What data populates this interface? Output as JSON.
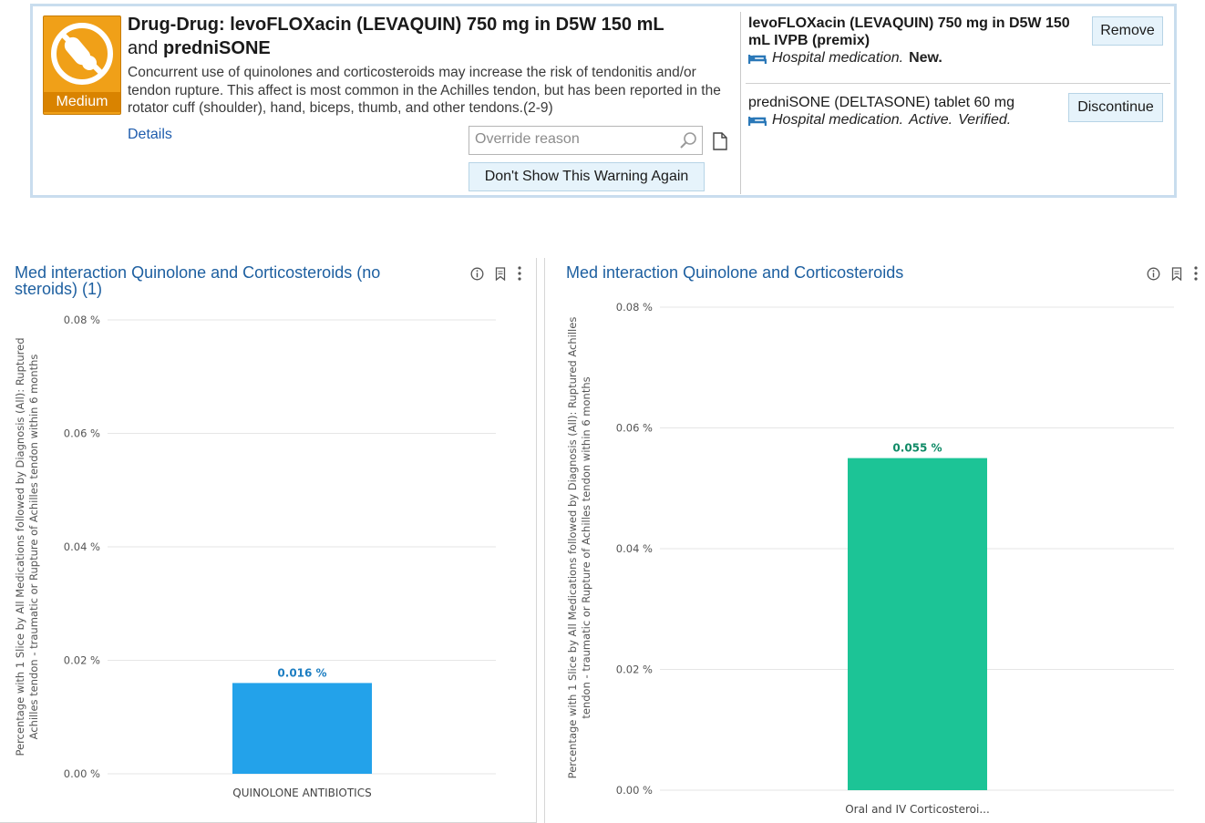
{
  "alert": {
    "severity": "Medium",
    "title_part1": "Drug-Drug: levoFLOXacin (LEVAQUIN) 750 mg in D5W 150 mL",
    "title_and": "and",
    "title_drug2": "predniSONE",
    "description": "Concurrent use of quinolones and corticosteroids may increase the risk of tendonitis and/or tendon rupture. This affect is most common in the Achilles tendon, but has been reported in the rotator cuff (shoulder), hand, biceps, thumb, and other tendons.(2-9)",
    "details_label": "Details",
    "override_placeholder": "Override reason",
    "dont_show_label": "Don't Show This Warning Again",
    "meds": [
      {
        "name": "levoFLOXacin (LEVAQUIN) 750 mg in D5W 150 mL IVPB (premix)",
        "source": "Hospital medication.",
        "status1": "New.",
        "status2": "",
        "action": "Remove"
      },
      {
        "name": "predniSONE (DELTASONE) tablet 60 mg",
        "source": "Hospital medication.",
        "status1": "Active.",
        "status2": "Verified.",
        "action": "Discontinue"
      }
    ],
    "colors": {
      "badge": "#f0a018",
      "link": "#1e5cad",
      "button_bg": "#e6f3fb"
    }
  },
  "charts": [
    {
      "title_line1": "Med interaction Quinolone and Corticosteroids (no",
      "title_line2": "steroids) (1)",
      "tools": [
        "info-icon",
        "bookmark-icon",
        "more-vertical-icon"
      ]
    },
    {
      "title_line1": "Med interaction Quinolone and Corticosteroids",
      "title_line2": "",
      "tools": [
        "info-icon",
        "bookmark-icon",
        "more-vertical-icon"
      ]
    }
  ],
  "chart_data": [
    {
      "type": "bar",
      "title": "Med interaction Quinolone and Corticosteroids (no steroids) (1)",
      "categories": [
        "QUINOLONE ANTIBIOTICS"
      ],
      "values": [
        0.016
      ],
      "data_labels": [
        "0.016 %"
      ],
      "ylabel_line1": "Percentage with 1 Slice by All Medications followed by Diagnosis (All): Ruptured",
      "ylabel_line2": "Achilles tendon - traumatic or Rupture of Achilles tendon within 6 months",
      "yticks": [
        "0.00 %",
        "0.02 %",
        "0.04 %",
        "0.06 %",
        "0.08 %"
      ],
      "ylim": [
        0,
        0.08
      ],
      "color": "#23a2ea",
      "label_color": "#1d7ec2"
    },
    {
      "type": "bar",
      "title": "Med interaction Quinolone and Corticosteroids",
      "categories": [
        "Oral and IV Corticosteroi..."
      ],
      "values": [
        0.055
      ],
      "data_labels": [
        "0.055 %"
      ],
      "ylabel_line1": "Percentage with 1 Slice by All Medications followed by Diagnosis (All): Ruptured Achilles",
      "ylabel_line2": "tendon - traumatic or Rupture of Achilles tendon within 6 months",
      "yticks": [
        "0.00 %",
        "0.02 %",
        "0.04 %",
        "0.06 %",
        "0.08 %"
      ],
      "ylim": [
        0,
        0.08
      ],
      "color": "#1cc496",
      "label_color": "#0f8a66"
    }
  ]
}
